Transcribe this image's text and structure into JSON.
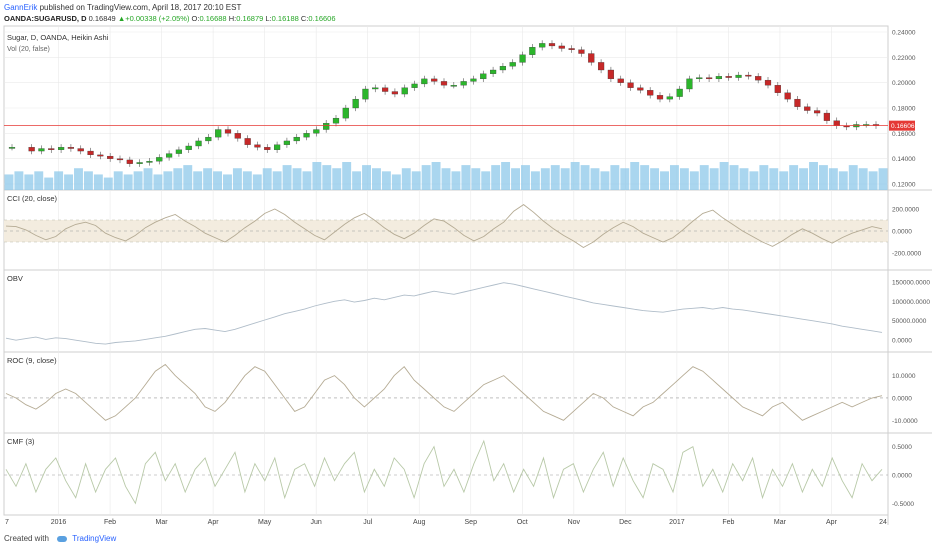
{
  "header": {
    "author": "GannErik",
    "published": "published on TradingView.com, April 18, 2017 20:10 EST",
    "symbol": "OANDA:SUGARUSD, D",
    "last": "0.16849",
    "change": "▲+0.00338 (+2.05%)",
    "o_label": "O:",
    "o": "0.16688",
    "h_label": "H:",
    "h": "0.16879",
    "l_label": "L:",
    "l": "0.16188",
    "c_label": "C:",
    "c": "0.16606"
  },
  "panes": {
    "main": {
      "title": "Sugar, D, OANDA, Heikin Ashi",
      "vol_label": "Vol (20, false)",
      "y_ticks": [
        "0.24000",
        "0.22000",
        "0.20000",
        "0.18000",
        "0.16000",
        "0.14000",
        "0.12000"
      ],
      "price_tag": "0.16606"
    },
    "cci": {
      "title": "CCI (20, close)",
      "y_ticks": [
        "200.0000",
        "0.0000",
        "-200.0000"
      ]
    },
    "obv": {
      "title": "OBV",
      "y_ticks": [
        "150000.0000",
        "100000.0000",
        "50000.0000",
        "0.0000"
      ]
    },
    "roc": {
      "title": "ROC (9, close)",
      "y_ticks": [
        "10.0000",
        "0.0000",
        "-10.0000"
      ]
    },
    "cmf": {
      "title": "CMF (3)",
      "y_ticks": [
        "0.5000",
        "0.0000",
        "-0.5000"
      ]
    }
  },
  "x_axis": {
    "labels": [
      "7",
      "2016",
      "Feb",
      "Mar",
      "Apr",
      "May",
      "Jun",
      "Jul",
      "Aug",
      "Sep",
      "Oct",
      "Nov",
      "Dec",
      "2017",
      "Feb",
      "Mar",
      "Apr",
      "24"
    ]
  },
  "footer": {
    "created_with": "Created with",
    "brand": "TradingView"
  },
  "colors": {
    "up_candle": "#2bb52b",
    "down_candle": "#c62828",
    "volume": "#8ec8ea",
    "indicator_line": "#b5ab94",
    "obv_line": "#b0bdc9",
    "cmf_line": "#b8c9a8",
    "price_line": "#e53935",
    "cci_band": "#f3ecdf",
    "grid": "#e9e9e9"
  },
  "chart_data": {
    "type": "candlestick",
    "title": "Sugar, D, OANDA, Heikin Ashi",
    "series": [
      {
        "name": "Price (close)",
        "points": [
          [
            0,
            0.149
          ],
          [
            2,
            0.146
          ],
          [
            3,
            0.148
          ],
          [
            4,
            0.147
          ],
          [
            5,
            0.149
          ],
          [
            6,
            0.148
          ],
          [
            7,
            0.146
          ],
          [
            8,
            0.143
          ],
          [
            9,
            0.142
          ],
          [
            10,
            0.14
          ],
          [
            11,
            0.139
          ],
          [
            12,
            0.136
          ],
          [
            13,
            0.137
          ],
          [
            14,
            0.138
          ],
          [
            15,
            0.141
          ],
          [
            16,
            0.144
          ],
          [
            17,
            0.147
          ],
          [
            18,
            0.15
          ],
          [
            19,
            0.154
          ],
          [
            20,
            0.157
          ],
          [
            21,
            0.163
          ],
          [
            22,
            0.16
          ],
          [
            23,
            0.156
          ],
          [
            24,
            0.151
          ],
          [
            25,
            0.149
          ],
          [
            26,
            0.147
          ],
          [
            27,
            0.151
          ],
          [
            28,
            0.154
          ],
          [
            29,
            0.157
          ],
          [
            30,
            0.16
          ],
          [
            31,
            0.163
          ],
          [
            32,
            0.168
          ],
          [
            33,
            0.172
          ],
          [
            34,
            0.18
          ],
          [
            35,
            0.187
          ],
          [
            36,
            0.195
          ],
          [
            37,
            0.196
          ],
          [
            38,
            0.193
          ],
          [
            39,
            0.191
          ],
          [
            40,
            0.196
          ],
          [
            41,
            0.199
          ],
          [
            42,
            0.203
          ],
          [
            43,
            0.201
          ],
          [
            44,
            0.198
          ],
          [
            45,
            0.198
          ],
          [
            46,
            0.201
          ],
          [
            47,
            0.203
          ],
          [
            48,
            0.207
          ],
          [
            49,
            0.21
          ],
          [
            50,
            0.213
          ],
          [
            51,
            0.216
          ],
          [
            52,
            0.222
          ],
          [
            53,
            0.228
          ],
          [
            54,
            0.231
          ],
          [
            55,
            0.229
          ],
          [
            56,
            0.227
          ],
          [
            57,
            0.226
          ],
          [
            58,
            0.223
          ],
          [
            59,
            0.216
          ],
          [
            60,
            0.21
          ],
          [
            61,
            0.203
          ],
          [
            62,
            0.2
          ],
          [
            63,
            0.196
          ],
          [
            64,
            0.194
          ],
          [
            65,
            0.19
          ],
          [
            66,
            0.187
          ],
          [
            67,
            0.189
          ],
          [
            68,
            0.195
          ],
          [
            69,
            0.203
          ],
          [
            70,
            0.204
          ],
          [
            71,
            0.203
          ],
          [
            72,
            0.205
          ],
          [
            73,
            0.204
          ],
          [
            74,
            0.206
          ],
          [
            75,
            0.205
          ],
          [
            76,
            0.202
          ],
          [
            77,
            0.198
          ],
          [
            78,
            0.192
          ],
          [
            79,
            0.187
          ],
          [
            80,
            0.181
          ],
          [
            81,
            0.178
          ],
          [
            82,
            0.176
          ],
          [
            83,
            0.17
          ],
          [
            84,
            0.166
          ],
          [
            85,
            0.165
          ],
          [
            86,
            0.167
          ],
          [
            87,
            0.167
          ],
          [
            88,
            0.166
          ]
        ]
      }
    ],
    "volume": [
      5,
      6,
      5,
      6,
      4,
      6,
      5,
      7,
      6,
      5,
      4,
      6,
      5,
      6,
      7,
      5,
      6,
      7,
      8,
      6,
      7,
      6,
      5,
      7,
      6,
      5,
      7,
      6,
      8,
      7,
      6,
      9,
      8,
      7,
      9,
      6,
      8,
      7,
      6,
      5,
      7,
      6,
      8,
      9,
      7,
      6,
      8,
      7,
      6,
      8,
      9,
      7,
      8,
      6,
      7,
      8,
      7,
      9,
      8,
      7,
      6,
      8,
      7,
      9,
      8,
      7,
      6,
      8,
      7,
      6,
      8,
      7,
      9,
      8,
      7,
      6,
      8,
      7,
      6,
      8,
      7,
      9,
      8,
      7,
      6,
      8,
      7,
      6,
      7
    ],
    "indicators": {
      "cci": [
        45,
        40,
        10,
        -40,
        -80,
        -50,
        20,
        60,
        80,
        50,
        -20,
        -60,
        -90,
        -40,
        30,
        80,
        120,
        150,
        90,
        40,
        -20,
        -60,
        -100,
        -40,
        30,
        90,
        160,
        200,
        150,
        80,
        20,
        -40,
        -80,
        -10,
        60,
        120,
        160,
        100,
        30,
        -30,
        -70,
        -20,
        50,
        110,
        90,
        30,
        -40,
        -90,
        -50,
        20,
        80,
        180,
        240,
        170,
        90,
        20,
        -40,
        -90,
        -150,
        -100,
        -30,
        30,
        80,
        40,
        -20,
        -60,
        -100,
        -60,
        10,
        90,
        160,
        190,
        120,
        60,
        0,
        -50,
        -100,
        -140,
        -90,
        -30,
        20,
        -20,
        -70,
        -110,
        -60,
        -20,
        10,
        40,
        20
      ],
      "obv": [
        5000,
        0,
        4000,
        8000,
        2000,
        6000,
        4000,
        0,
        -4000,
        -8000,
        -10000,
        -6000,
        -4000,
        -2000,
        2000,
        6000,
        10000,
        16000,
        22000,
        28000,
        30000,
        26000,
        22000,
        28000,
        36000,
        44000,
        52000,
        60000,
        68000,
        74000,
        80000,
        88000,
        94000,
        100000,
        104000,
        98000,
        102000,
        108000,
        104000,
        110000,
        116000,
        114000,
        120000,
        126000,
        122000,
        118000,
        124000,
        130000,
        136000,
        142000,
        148000,
        144000,
        138000,
        132000,
        126000,
        120000,
        114000,
        108000,
        102000,
        96000,
        92000,
        88000,
        84000,
        80000,
        76000,
        74000,
        72000,
        76000,
        80000,
        82000,
        84000,
        80000,
        84000,
        80000,
        78000,
        74000,
        70000,
        66000,
        62000,
        58000,
        54000,
        50000,
        46000,
        42000,
        36000,
        32000,
        28000,
        24000,
        20000
      ],
      "roc": [
        2,
        0,
        -3,
        -5,
        -2,
        2,
        4,
        2,
        -2,
        -6,
        -10,
        -8,
        -4,
        0,
        6,
        12,
        15,
        10,
        6,
        2,
        -4,
        -6,
        -2,
        4,
        10,
        14,
        12,
        6,
        0,
        -6,
        -4,
        2,
        8,
        10,
        6,
        0,
        -4,
        0,
        4,
        10,
        14,
        8,
        4,
        0,
        -4,
        -6,
        -2,
        2,
        6,
        8,
        10,
        6,
        2,
        -2,
        -6,
        -8,
        -10,
        -6,
        -2,
        2,
        0,
        -4,
        -6,
        -8,
        -4,
        -2,
        2,
        6,
        10,
        14,
        12,
        8,
        4,
        0,
        -4,
        -6,
        -8,
        -4,
        -2,
        -6,
        -10,
        -8,
        -6,
        -4,
        -2,
        -4,
        -2,
        0,
        1
      ],
      "cmf": [
        0.1,
        -0.2,
        0.2,
        -0.3,
        0.1,
        0.3,
        -0.1,
        -0.4,
        0.2,
        -0.3,
        0.1,
        0.3,
        -0.2,
        -0.5,
        0.2,
        0.4,
        -0.1,
        0.2,
        -0.3,
        0.1,
        0.3,
        -0.2,
        0.1,
        0.4,
        -0.3,
        0.2,
        -0.1,
        0.3,
        -0.4,
        0.1,
        0.2,
        -0.2,
        0.3,
        -0.1,
        0.2,
        0.4,
        -0.3,
        0.1,
        -0.2,
        0.3,
        0.1,
        -0.4,
        0.2,
        0.5,
        -0.2,
        0.1,
        -0.3,
        0.2,
        0.6,
        -0.1,
        0.2,
        -0.3,
        0.1,
        -0.2,
        0.3,
        -0.4,
        0.1,
        0.2,
        -0.3,
        0.1,
        0.4,
        -0.2,
        0.3,
        -0.1,
        -0.4,
        0.2,
        0.1,
        -0.3,
        0.4,
        0.5,
        -0.2,
        0.1,
        -0.3,
        0.2,
        -0.1,
        0.3,
        -0.4,
        0.1,
        -0.2,
        0.2,
        -0.3,
        0.1,
        -0.2,
        0.3,
        -0.1,
        -0.4,
        0.2,
        -0.1,
        0.1
      ]
    },
    "y_range_price": [
      0.12,
      0.24
    ],
    "current_price": 0.16606
  }
}
